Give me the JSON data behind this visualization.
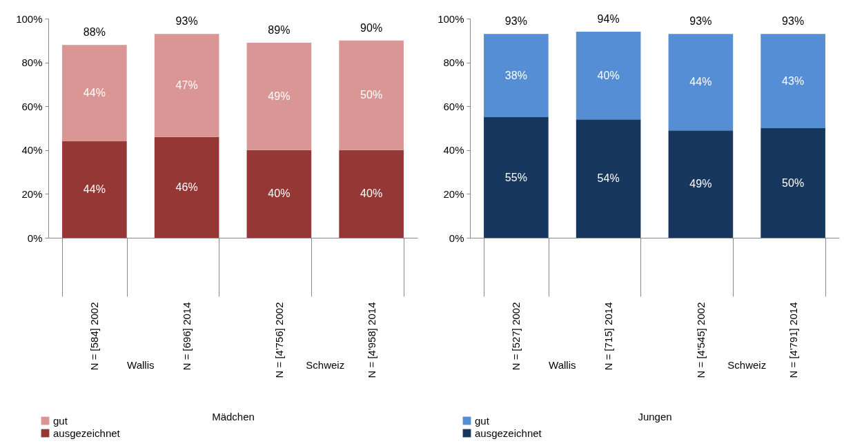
{
  "chart_data": [
    {
      "type": "bar",
      "stacked": true,
      "xlabel": "Mädchen",
      "categories": [
        "N = [584]  2002",
        "N = [696]  2014",
        "N = [4'756]  2002",
        "N = [4'958]  2014"
      ],
      "series": [
        {
          "name": "ausgezeichnet",
          "color": "#953735",
          "values": [
            44,
            46,
            40,
            40
          ],
          "value_labels": [
            "44%",
            "46%",
            "40%",
            "40%"
          ]
        },
        {
          "name": "gut",
          "color": "#d99694",
          "values": [
            44,
            47,
            49,
            50
          ],
          "value_labels": [
            "44%",
            "47%",
            "49%",
            "50%"
          ]
        }
      ],
      "totals": [
        "88%",
        "93%",
        "89%",
        "90%"
      ],
      "ylim": [
        0,
        100
      ],
      "yticks": [
        {
          "value": 0,
          "label": "0%"
        },
        {
          "value": 20,
          "label": "20%"
        },
        {
          "value": 40,
          "label": "40%"
        },
        {
          "value": 60,
          "label": "60%"
        },
        {
          "value": 80,
          "label": "80%"
        },
        {
          "value": 100,
          "label": "100%"
        }
      ],
      "annotations": [
        "Wallis",
        "Schweiz"
      ],
      "legend": "bottom",
      "grid": false
    },
    {
      "type": "bar",
      "stacked": true,
      "xlabel": "Jungen",
      "categories": [
        "N = [527]  2002",
        "N = [715]  2014",
        "N = [4'545]  2002",
        "N = [4'791]  2014"
      ],
      "series": [
        {
          "name": "ausgezeichnet",
          "color": "#17375e",
          "values": [
            55,
            54,
            49,
            50
          ],
          "value_labels": [
            "55%",
            "54%",
            "49%",
            "50%"
          ]
        },
        {
          "name": "gut",
          "color": "#558ed5",
          "values": [
            38,
            40,
            44,
            43
          ],
          "value_labels": [
            "38%",
            "40%",
            "44%",
            "43%"
          ]
        }
      ],
      "totals": [
        "93%",
        "94%",
        "93%",
        "93%"
      ],
      "ylim": [
        0,
        100
      ],
      "yticks": [
        {
          "value": 0,
          "label": "0%"
        },
        {
          "value": 20,
          "label": "20%"
        },
        {
          "value": 40,
          "label": "40%"
        },
        {
          "value": 60,
          "label": "60%"
        },
        {
          "value": 80,
          "label": "80%"
        },
        {
          "value": 100,
          "label": "100%"
        }
      ],
      "annotations": [
        "Wallis",
        "Schweiz"
      ],
      "legend": "bottom",
      "grid": false
    }
  ]
}
